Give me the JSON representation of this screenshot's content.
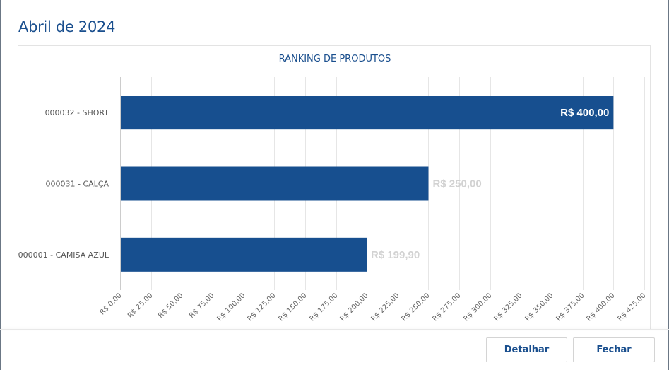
{
  "modal": {
    "title": "Abril de 2024"
  },
  "footer": {
    "detail_label": "Detalhar",
    "close_label": "Fechar"
  },
  "colors": {
    "bar": "#174f8f",
    "title": "#1a4f8e",
    "label_inside": "#ffffff",
    "label_outside": "#d2d2d2",
    "grid": "#e6e6e6"
  },
  "chart_data": {
    "type": "bar",
    "orientation": "horizontal",
    "title": "RANKING DE PRODUTOS",
    "categories": [
      "000032 - SHORT",
      "000031 - CALÇA",
      "000001 - CAMISA AZUL"
    ],
    "values": [
      400.0,
      250.0,
      199.9
    ],
    "value_labels": [
      "R$ 400,00",
      "R$ 250,00",
      "R$ 199,90"
    ],
    "xlim": [
      0,
      425
    ],
    "x_tick_values": [
      0,
      25,
      50,
      75,
      100,
      125,
      150,
      175,
      200,
      225,
      250,
      275,
      300,
      325,
      350,
      375,
      400,
      425
    ],
    "x_tick_labels": [
      "R$ 0,00",
      "R$ 25,00",
      "R$ 50,00",
      "R$ 75,00",
      "R$ 100,00",
      "R$ 125,00",
      "R$ 150,00",
      "R$ 175,00",
      "R$ 200,00",
      "R$ 225,00",
      "R$ 250,00",
      "R$ 275,00",
      "R$ 300,00",
      "R$ 325,00",
      "R$ 350,00",
      "R$ 375,00",
      "R$ 400,00",
      "R$ 425,00"
    ],
    "grid": true,
    "legend": false
  }
}
